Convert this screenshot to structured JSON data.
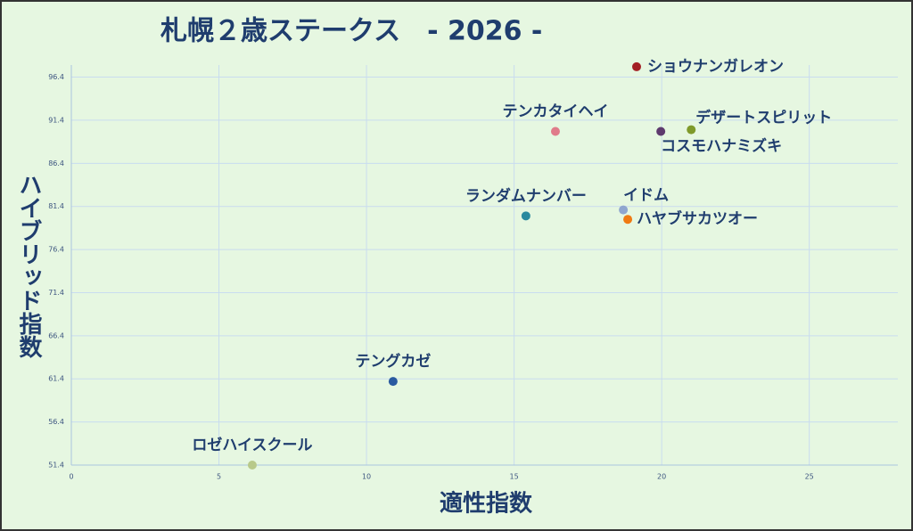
{
  "chart_data": {
    "type": "scatter",
    "title": "札幌２歳ステークス　- 2026 -",
    "x_label": "適性指数",
    "y_label": "ハイブリッド指数",
    "xlim": [
      0,
      28
    ],
    "xticks": [
      0,
      5,
      10,
      15,
      20,
      25
    ],
    "ylim": [
      51.4,
      97.8
    ],
    "yticks": [
      51.4,
      56.4,
      61.4,
      66.4,
      71.4,
      76.4,
      81.4,
      86.4,
      91.4,
      96.4
    ],
    "grid": true,
    "points": [
      {
        "name": "ショウナンガレオン",
        "x": 19.15,
        "y": 97.6,
        "color": "#a31f24"
      },
      {
        "name": "テンカタイヘイ",
        "x": 16.4,
        "y": 90.1,
        "color": "#e07b8a"
      },
      {
        "name": "デザートスピリット",
        "x": 21.0,
        "y": 90.3,
        "color": "#7f9a2a"
      },
      {
        "name": "コスモハナミズキ",
        "x": 19.97,
        "y": 90.1,
        "color": "#5e3a6e"
      },
      {
        "name": "ランダムナンバー",
        "x": 15.4,
        "y": 80.3,
        "color": "#2a8a9e"
      },
      {
        "name": "イドム",
        "x": 18.7,
        "y": 81.0,
        "color": "#8fa6cf"
      },
      {
        "name": "ハヤブサカツオー",
        "x": 18.85,
        "y": 79.9,
        "color": "#f07a12"
      },
      {
        "name": "テングカゼ",
        "x": 10.9,
        "y": 61.1,
        "color": "#2a5aa0"
      },
      {
        "name": "ロゼハイスクール",
        "x": 6.13,
        "y": 51.4,
        "color": "#b8c98a"
      }
    ]
  }
}
